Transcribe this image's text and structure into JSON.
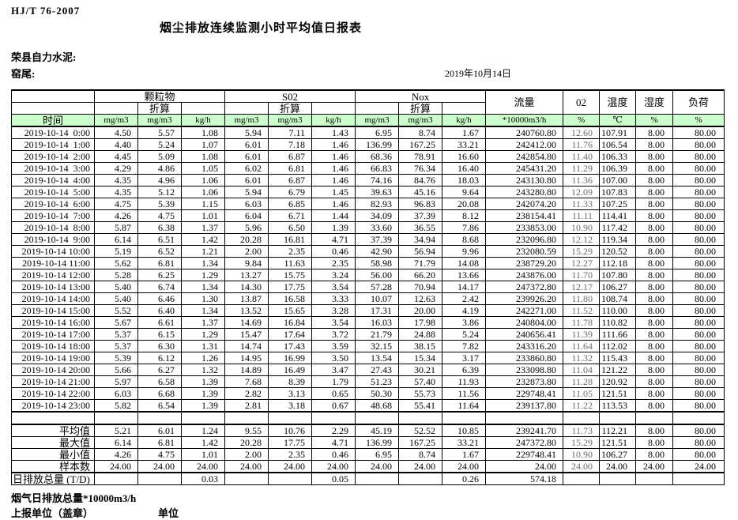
{
  "page": {
    "standard_code": "HJ/T  76-2007",
    "title": "烟尘排放连续监测小时平均值日报表",
    "company": "荣县自力水泥:",
    "site": "窑尾:",
    "date": "2019年10月14日"
  },
  "colors": {
    "header_green": "#CCFFCC",
    "o2_text": "#6B6B6B",
    "border": "#000000"
  },
  "table": {
    "time_header": "时间",
    "subheader": "折算",
    "groups": {
      "pm": "颗粒物",
      "so2": "S02",
      "nox": "Nox",
      "flow": "流量",
      "o2": "02",
      "temp": "温度",
      "humidity": "湿度",
      "load": "负荷"
    },
    "units": {
      "mg": "mg/m3",
      "kg": "kg/h",
      "flow": "*10000m3/h",
      "percent": "%",
      "celsius": "℃"
    },
    "rows": [
      {
        "time": "2019-10-14  0:00",
        "values": [
          "4.50",
          "5.57",
          "1.08",
          "5.94",
          "7.11",
          "1.43",
          "6.95",
          "8.74",
          "1.67",
          "240760.80",
          "12.60",
          "107.91",
          "8.00",
          "80.00"
        ]
      },
      {
        "time": "2019-10-14  1:00",
        "values": [
          "4.40",
          "5.24",
          "1.07",
          "6.01",
          "7.18",
          "1.46",
          "136.99",
          "167.25",
          "33.21",
          "242412.00",
          "11.76",
          "106.54",
          "8.00",
          "80.00"
        ]
      },
      {
        "time": "2019-10-14  2:00",
        "values": [
          "4.45",
          "5.09",
          "1.08",
          "6.01",
          "6.87",
          "1.46",
          "68.36",
          "78.91",
          "16.60",
          "242854.80",
          "11.40",
          "106.33",
          "8.00",
          "80.00"
        ]
      },
      {
        "time": "2019-10-14  3:00",
        "values": [
          "4.29",
          "4.86",
          "1.05",
          "6.02",
          "6.81",
          "1.46",
          "66.83",
          "76.34",
          "16.40",
          "245431.20",
          "11.29",
          "106.39",
          "8.00",
          "80.00"
        ]
      },
      {
        "time": "2019-10-14  4:00",
        "values": [
          "4.35",
          "4.96",
          "1.06",
          "6.01",
          "6.87",
          "1.46",
          "74.16",
          "84.76",
          "18.03",
          "243130.80",
          "11.36",
          "107.00",
          "8.00",
          "80.00"
        ]
      },
      {
        "time": "2019-10-14  5:00",
        "values": [
          "4.35",
          "5.12",
          "1.06",
          "5.94",
          "6.79",
          "1.45",
          "39.63",
          "45.16",
          "9.64",
          "243280.80",
          "12.09",
          "107.83",
          "8.00",
          "80.00"
        ]
      },
      {
        "time": "2019-10-14  6:00",
        "values": [
          "4.75",
          "5.39",
          "1.15",
          "6.03",
          "6.85",
          "1.46",
          "82.93",
          "96.83",
          "20.08",
          "242074.20",
          "11.33",
          "107.25",
          "8.00",
          "80.00"
        ]
      },
      {
        "time": "2019-10-14  7:00",
        "values": [
          "4.26",
          "4.75",
          "1.01",
          "6.04",
          "6.71",
          "1.44",
          "34.09",
          "37.39",
          "8.12",
          "238154.41",
          "11.11",
          "114.41",
          "8.00",
          "80.00"
        ]
      },
      {
        "time": "2019-10-14  8:00",
        "values": [
          "5.87",
          "6.38",
          "1.37",
          "5.96",
          "6.50",
          "1.39",
          "33.60",
          "36.55",
          "7.86",
          "233853.00",
          "10.90",
          "117.42",
          "8.00",
          "80.00"
        ]
      },
      {
        "time": "2019-10-14  9:00",
        "values": [
          "6.14",
          "6.51",
          "1.42",
          "20.28",
          "16.81",
          "4.71",
          "37.39",
          "34.94",
          "8.68",
          "232096.80",
          "12.12",
          "119.34",
          "8.00",
          "80.00"
        ]
      },
      {
        "time": "2019-10-14 10:00",
        "values": [
          "5.19",
          "6.52",
          "1.21",
          "2.00",
          "2.35",
          "0.46",
          "42.90",
          "56.94",
          "9.96",
          "232080.59",
          "15.29",
          "120.52",
          "8.00",
          "80.00"
        ]
      },
      {
        "time": "2019-10-14 11:00",
        "values": [
          "5.62",
          "6.81",
          "1.34",
          "9.84",
          "11.63",
          "2.35",
          "58.98",
          "71.79",
          "14.08",
          "238729.20",
          "12.27",
          "112.18",
          "8.00",
          "80.00"
        ]
      },
      {
        "time": "2019-10-14 12:00",
        "values": [
          "5.28",
          "6.25",
          "1.29",
          "13.27",
          "15.75",
          "3.24",
          "56.00",
          "66.20",
          "13.66",
          "243876.00",
          "11.70",
          "107.80",
          "8.00",
          "80.00"
        ]
      },
      {
        "time": "2019-10-14 13:00",
        "values": [
          "5.40",
          "6.74",
          "1.34",
          "14.30",
          "17.75",
          "3.54",
          "57.28",
          "70.94",
          "14.17",
          "247372.80",
          "12.17",
          "106.27",
          "8.00",
          "80.00"
        ]
      },
      {
        "time": "2019-10-14 14:00",
        "values": [
          "5.40",
          "6.46",
          "1.30",
          "13.87",
          "16.58",
          "3.33",
          "10.07",
          "12.63",
          "2.42",
          "239926.20",
          "11.80",
          "108.74",
          "8.00",
          "80.00"
        ]
      },
      {
        "time": "2019-10-14 15:00",
        "values": [
          "5.52",
          "6.40",
          "1.34",
          "13.52",
          "15.65",
          "3.28",
          "17.31",
          "20.00",
          "4.19",
          "242271.00",
          "11.52",
          "110.00",
          "8.00",
          "80.00"
        ]
      },
      {
        "time": "2019-10-14 16:00",
        "values": [
          "5.67",
          "6.61",
          "1.37",
          "14.69",
          "16.84",
          "3.54",
          "16.03",
          "17.98",
          "3.86",
          "240804.00",
          "11.78",
          "110.82",
          "8.00",
          "80.00"
        ]
      },
      {
        "time": "2019-10-14 17:00",
        "values": [
          "5.37",
          "6.15",
          "1.29",
          "15.47",
          "17.64",
          "3.72",
          "21.79",
          "24.88",
          "5.24",
          "240656.41",
          "11.39",
          "111.66",
          "8.00",
          "80.00"
        ]
      },
      {
        "time": "2019-10-14 18:00",
        "values": [
          "5.37",
          "6.30",
          "1.31",
          "14.74",
          "17.43",
          "3.59",
          "32.15",
          "38.15",
          "7.82",
          "243316.20",
          "11.64",
          "112.02",
          "8.00",
          "80.00"
        ]
      },
      {
        "time": "2019-10-14 19:00",
        "values": [
          "5.39",
          "6.12",
          "1.26",
          "14.95",
          "16.99",
          "3.50",
          "13.54",
          "15.34",
          "3.17",
          "233860.80",
          "11.32",
          "115.43",
          "8.00",
          "80.00"
        ]
      },
      {
        "time": "2019-10-14 20:00",
        "values": [
          "5.66",
          "6.27",
          "1.32",
          "14.89",
          "16.49",
          "3.47",
          "27.43",
          "30.21",
          "6.39",
          "233098.80",
          "11.04",
          "121.22",
          "8.00",
          "80.00"
        ]
      },
      {
        "time": "2019-10-14 21:00",
        "values": [
          "5.97",
          "6.58",
          "1.39",
          "7.68",
          "8.39",
          "1.79",
          "51.23",
          "57.40",
          "11.93",
          "232873.80",
          "11.28",
          "120.92",
          "8.00",
          "80.00"
        ]
      },
      {
        "time": "2019-10-14 22:00",
        "values": [
          "6.03",
          "6.68",
          "1.39",
          "2.82",
          "3.13",
          "0.65",
          "50.30",
          "55.73",
          "11.56",
          "229748.41",
          "11.05",
          "121.51",
          "8.00",
          "80.00"
        ]
      },
      {
        "time": "2019-10-14 23:00",
        "values": [
          "5.82",
          "6.54",
          "1.39",
          "2.81",
          "3.18",
          "0.67",
          "48.68",
          "55.41",
          "11.64",
          "239137.80",
          "11.22",
          "113.53",
          "8.00",
          "80.00"
        ]
      }
    ],
    "summary": [
      {
        "label": "平均值",
        "values": [
          "5.21",
          "6.01",
          "1.24",
          "9.55",
          "10.76",
          "2.29",
          "45.19",
          "52.52",
          "10.85",
          "239241.70",
          "11.73",
          "112.21",
          "8.00",
          "80.00"
        ]
      },
      {
        "label": "最大值",
        "values": [
          "6.14",
          "6.81",
          "1.42",
          "20.28",
          "17.75",
          "4.71",
          "136.99",
          "167.25",
          "33.21",
          "247372.80",
          "15.29",
          "121.51",
          "8.00",
          "80.00"
        ]
      },
      {
        "label": "最小值",
        "values": [
          "4.26",
          "4.75",
          "1.01",
          "2.00",
          "2.35",
          "0.46",
          "6.95",
          "8.74",
          "1.67",
          "229748.41",
          "10.90",
          "106.27",
          "8.00",
          "80.00"
        ]
      },
      {
        "label": "样本数",
        "values": [
          "24.00",
          "24.00",
          "24.00",
          "24.00",
          "24.00",
          "24.00",
          "24.00",
          "24.00",
          "24.00",
          "24.00",
          "24.00",
          "24.00",
          "24.00",
          "24.00"
        ]
      }
    ],
    "total": {
      "label": "日排放总量 (T/D)",
      "values": [
        "",
        "",
        "0.03",
        "",
        "",
        "0.05",
        "",
        "",
        "0.26",
        "574.18",
        "",
        "",
        "",
        ""
      ]
    }
  },
  "footer": {
    "line1": "烟气日排放总量*10000m3/h",
    "line2": "上报单位（盖章）",
    "unit_label": "单位"
  }
}
